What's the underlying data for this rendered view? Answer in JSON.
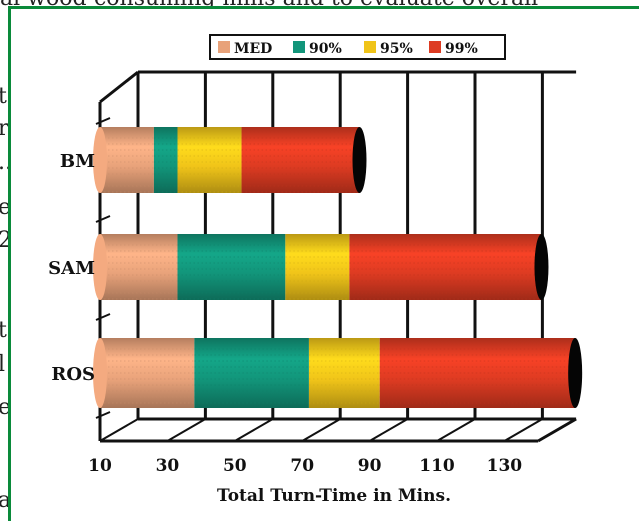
{
  "background_text": {
    "top_line": "al wood-consuming mills and to evaluate overall",
    "left_fragments": [
      "te",
      "rg",
      "..",
      "er",
      "2",
      "ts",
      "l",
      "et",
      "a"
    ]
  },
  "chart_data": {
    "type": "bar",
    "orientation": "horizontal",
    "stacked": true,
    "style": "3d-cylinder",
    "categories": [
      "BM",
      "SAM",
      "ROS"
    ],
    "series": [
      {
        "name": "MED",
        "color": "#e8a27a",
        "values": [
          16,
          23,
          28
        ]
      },
      {
        "name": "90%",
        "color": "#12957a",
        "values": [
          7,
          32,
          34
        ]
      },
      {
        "name": "95%",
        "color": "#f0c419",
        "values": [
          19,
          19,
          21
        ]
      },
      {
        "name": "99%",
        "color": "#dd3b22",
        "values": [
          35,
          57,
          58
        ]
      }
    ],
    "xlabel": "Total Turn-Time in Mins.",
    "ylabel": "",
    "xlim": [
      10,
      140
    ],
    "xticks": [
      10,
      30,
      50,
      70,
      90,
      110,
      130
    ],
    "grid": true,
    "legend_position": "top"
  }
}
